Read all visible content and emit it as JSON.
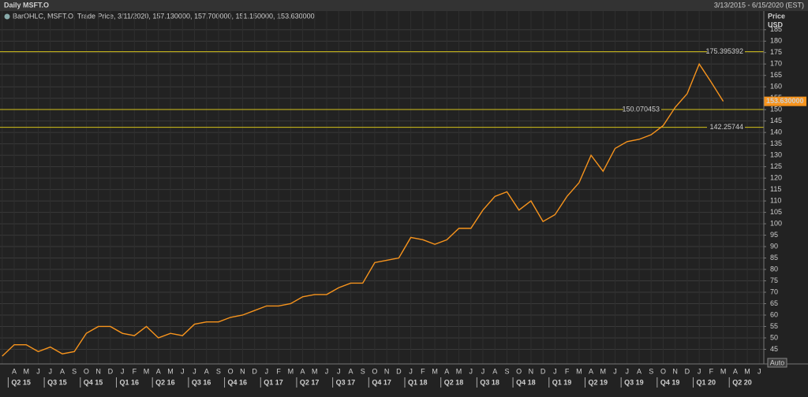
{
  "chart_data": {
    "type": "line",
    "title": "Daily MSFT.O",
    "subtitle": "3/13/2015 - 6/15/2020 (EST)",
    "y_axis_label": "Price",
    "y_axis_unit": "USD",
    "button": "Auto",
    "categories": [
      null,
      "A",
      "M",
      "J",
      "J",
      "A",
      "S",
      "O",
      "N",
      "D",
      "J",
      "F",
      "M",
      "A",
      "M",
      "J",
      "J",
      "A",
      "S",
      "O",
      "N",
      "D",
      "J",
      "F",
      "M",
      "A",
      "M",
      "J",
      "J",
      "A",
      "S",
      "O",
      "N",
      "D",
      "J",
      "F",
      "M",
      "A",
      "M",
      "J",
      "J",
      "A",
      "S",
      "O",
      "N",
      "D",
      "J",
      "F",
      "M",
      "A",
      "M",
      "J",
      "J",
      "A",
      "S",
      "O",
      "N",
      "D",
      "J",
      "F",
      "M",
      "A",
      "M",
      "J"
    ],
    "quarters": [
      "Q2 15",
      "Q3 15",
      "Q4 15",
      "Q1 16",
      "Q2 16",
      "Q3 16",
      "Q4 16",
      "Q1 17",
      "Q2 17",
      "Q3 17",
      "Q4 17",
      "Q1 18",
      "Q2 18",
      "Q3 18",
      "Q4 18",
      "Q1 19",
      "Q2 19",
      "Q3 19",
      "Q4 19",
      "Q1 20",
      "Q2 20"
    ],
    "series": [
      {
        "name": "BarOHLC, MSFT.O, Trade Price, 3/11/2020, 157.130000, 157.700000, 151.150000, 153.630000",
        "color": "#f7941d",
        "values": [
          42,
          47,
          47,
          44,
          46,
          43,
          44,
          52,
          55,
          55,
          52,
          51,
          55,
          50,
          52,
          51,
          56,
          57,
          57,
          59,
          60,
          62,
          64,
          64,
          65,
          68,
          69,
          69,
          72,
          74,
          74,
          83,
          84,
          85,
          94,
          93,
          91,
          93,
          98,
          98,
          106,
          112,
          114,
          106,
          110,
          101,
          104,
          112,
          118,
          130,
          123,
          133,
          136,
          137,
          139,
          143,
          151,
          157,
          170,
          162,
          153.63,
          null,
          null,
          null
        ]
      }
    ],
    "levels": [
      175.395392,
      150.070453,
      142.25744
    ],
    "last_price": {
      "value": 153.63,
      "label": "153.630000"
    },
    "ylim": [
      38.6,
      193.2
    ],
    "yticks": [
      45,
      50,
      55,
      60,
      65,
      70,
      75,
      80,
      85,
      90,
      95,
      100,
      105,
      110,
      115,
      120,
      125,
      130,
      135,
      140,
      145,
      150,
      155,
      160,
      165,
      170,
      175,
      180,
      185
    ],
    "grid": true
  }
}
